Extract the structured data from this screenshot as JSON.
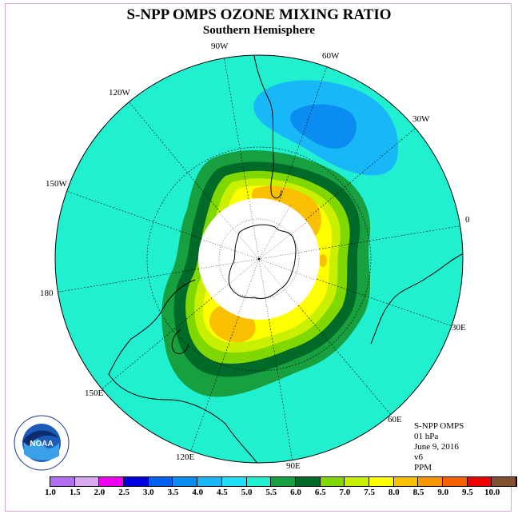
{
  "title": "S-NPP OMPS OZONE MIXING RATIO",
  "subtitle": "Southern Hemisphere",
  "longitude_labels": [
    "90W",
    "60W",
    "30W",
    "0",
    "30E",
    "60E",
    "90E",
    "120E",
    "150E",
    "180",
    "150W",
    "120W"
  ],
  "info": {
    "instrument": "S-NPP OMPS",
    "level": "01 hPa",
    "date": "June 9, 2016",
    "version": "v6",
    "units": "PPM"
  },
  "colorbar": {
    "ticks": [
      "1.0",
      "1.5",
      "2.0",
      "2.5",
      "3.0",
      "3.5",
      "4.0",
      "4.5",
      "5.0",
      "5.5",
      "6.0",
      "6.5",
      "7.0",
      "7.5",
      "8.0",
      "8.5",
      "9.0",
      "9.5",
      "10.0"
    ],
    "colors": [
      "#b070f0",
      "#d8a8f0",
      "#f000f0",
      "#0000e0",
      "#0060f0",
      "#0a8cf0",
      "#18b8f8",
      "#20e0f8",
      "#20f0d0",
      "#18a040",
      "#006a28",
      "#80d800",
      "#c8f000",
      "#ffff00",
      "#f8c000",
      "#f89800",
      "#f86000",
      "#f00000",
      "#805030"
    ]
  },
  "logo": {
    "name": "NOAA"
  },
  "colors": {
    "background_field": "#20f0d0",
    "low_field": "#18b8f8",
    "lowest_field": "#0a8cf0",
    "ring_dark": "#18a040",
    "ring_darker": "#006a28",
    "ring_light": "#80d800",
    "ring_yellowgreen": "#c8f000",
    "ring_yellow": "#ffff00",
    "core_orange": "#f8c000"
  }
}
